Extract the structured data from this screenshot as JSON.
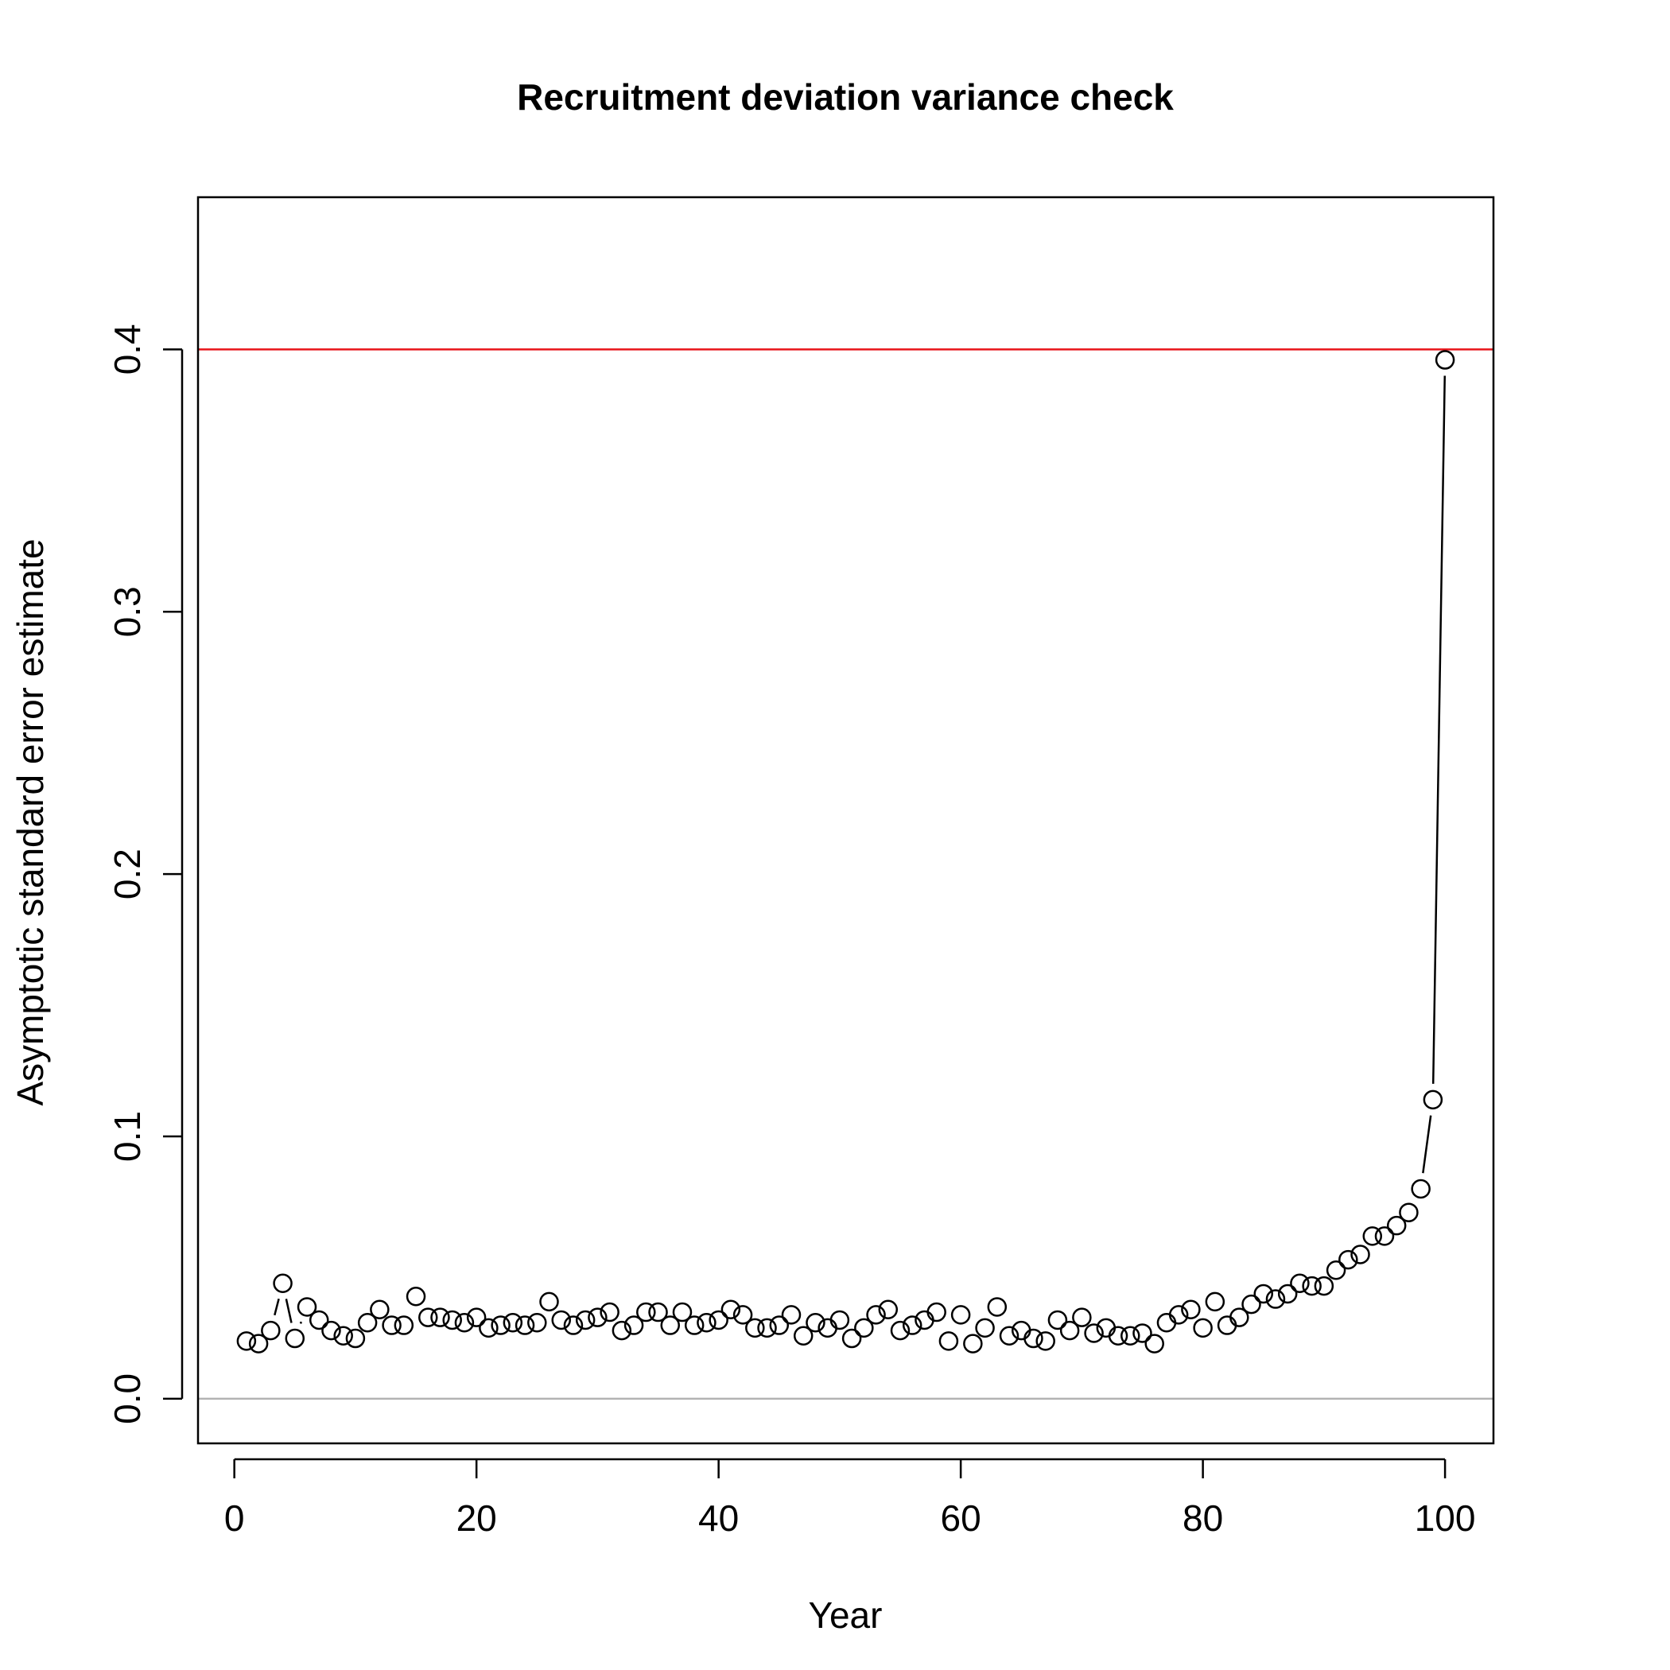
{
  "chart_data": {
    "type": "scatter",
    "title": "Recruitment deviation variance check",
    "xlabel": "Year",
    "ylabel": "Asymptotic standard error estimate",
    "xlim": [
      -3,
      104
    ],
    "ylim": [
      -0.017,
      0.458
    ],
    "xticks": [
      0,
      20,
      40,
      60,
      80,
      100
    ],
    "yticks": [
      0.0,
      0.1,
      0.2,
      0.3,
      0.4
    ],
    "xtick_labels": [
      "0",
      "20",
      "40",
      "60",
      "80",
      "100"
    ],
    "ytick_labels": [
      "0.0",
      "0.1",
      "0.2",
      "0.3",
      "0.4"
    ],
    "grid": false,
    "reference_lines": [
      {
        "y": 0.4,
        "color": "#e8141a"
      },
      {
        "y": 0.0,
        "color": "#b3b3b3"
      }
    ],
    "point_style": "open-circle",
    "connect_points": true,
    "series": [
      {
        "x": [
          1,
          2,
          3,
          4,
          5,
          6,
          7,
          8,
          9,
          10,
          11,
          12,
          13,
          14,
          15,
          16,
          17,
          18,
          19,
          20,
          21,
          22,
          23,
          24,
          25,
          26,
          27,
          28,
          29,
          30,
          31,
          32,
          33,
          34,
          35,
          36,
          37,
          38,
          39,
          40,
          41,
          42,
          43,
          44,
          45,
          46,
          47,
          48,
          49,
          50,
          51,
          52,
          53,
          54,
          55,
          56,
          57,
          58,
          59,
          60,
          61,
          62,
          63,
          64,
          65,
          66,
          67,
          68,
          69,
          70,
          71,
          72,
          73,
          74,
          75,
          76,
          77,
          78,
          79,
          80,
          81,
          82,
          83,
          84,
          85,
          86,
          87,
          88,
          89,
          90,
          91,
          92,
          93,
          94,
          95,
          96,
          97,
          98,
          99,
          100
        ],
        "y": [
          0.022,
          0.021,
          0.026,
          0.044,
          0.023,
          0.035,
          0.03,
          0.026,
          0.024,
          0.023,
          0.029,
          0.034,
          0.028,
          0.028,
          0.039,
          0.031,
          0.031,
          0.03,
          0.029,
          0.031,
          0.027,
          0.028,
          0.029,
          0.028,
          0.029,
          0.037,
          0.03,
          0.028,
          0.03,
          0.031,
          0.033,
          0.026,
          0.028,
          0.033,
          0.033,
          0.028,
          0.033,
          0.028,
          0.029,
          0.03,
          0.034,
          0.032,
          0.027,
          0.027,
          0.028,
          0.032,
          0.024,
          0.029,
          0.027,
          0.03,
          0.023,
          0.027,
          0.032,
          0.034,
          0.026,
          0.028,
          0.03,
          0.033,
          0.022,
          0.032,
          0.021,
          0.027,
          0.035,
          0.024,
          0.026,
          0.023,
          0.022,
          0.03,
          0.026,
          0.031,
          0.025,
          0.027,
          0.024,
          0.024,
          0.025,
          0.021,
          0.029,
          0.032,
          0.034,
          0.027,
          0.037,
          0.028,
          0.031,
          0.036,
          0.04,
          0.038,
          0.04,
          0.044,
          0.043,
          0.043,
          0.049,
          0.053,
          0.055,
          0.062,
          0.062,
          0.066,
          0.071,
          0.08,
          0.114,
          0.396
        ]
      }
    ]
  }
}
